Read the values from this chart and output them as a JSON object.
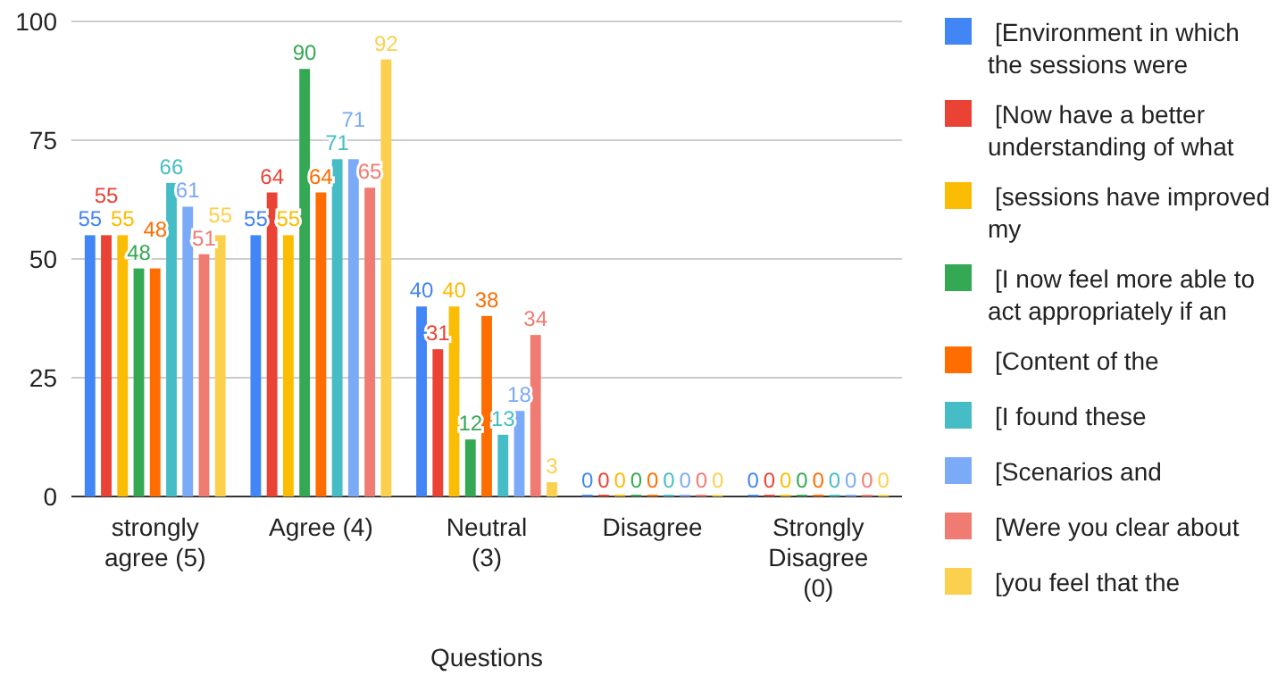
{
  "chart_data": {
    "type": "bar",
    "xlabel": "Questions",
    "categories": [
      "strongly agree (5)",
      "Agree (4)",
      "Neutral (3)",
      "Disagree",
      "Strongly Disagree (0)"
    ],
    "series": [
      {
        "name": "[Environment in which the sessions were",
        "color": "#4285f4",
        "values": [
          55,
          55,
          40,
          0,
          0
        ]
      },
      {
        "name": "[Now have a better understanding of what",
        "color": "#ea4335",
        "values": [
          55,
          64,
          31,
          0,
          0
        ]
      },
      {
        "name": "[sessions have improved my",
        "color": "#fbbc04",
        "values": [
          55,
          55,
          40,
          0,
          0
        ]
      },
      {
        "name": "[I now feel more able to act appropriately if an",
        "color": "#34a853",
        "values": [
          48,
          90,
          12,
          0,
          0
        ]
      },
      {
        "name": "[Content of the",
        "color": "#ff6d01",
        "values": [
          48,
          64,
          38,
          0,
          0
        ]
      },
      {
        "name": "[I found these",
        "color": "#46bdc6",
        "values": [
          66,
          71,
          13,
          0,
          0
        ]
      },
      {
        "name": "[Scenarios and",
        "color": "#7baaf7",
        "values": [
          61,
          71,
          18,
          0,
          0
        ]
      },
      {
        "name": "[Were you clear about",
        "color": "#f07b72",
        "values": [
          51,
          65,
          34,
          0,
          0
        ]
      },
      {
        "name": "[you feel that the",
        "color": "#fcd04f",
        "values": [
          55,
          92,
          3,
          0,
          0
        ]
      }
    ],
    "ylim": [
      0,
      100
    ],
    "yticks": [
      0,
      25,
      50,
      75,
      100
    ],
    "grid": "y",
    "legend": "right",
    "data_labels": true
  }
}
